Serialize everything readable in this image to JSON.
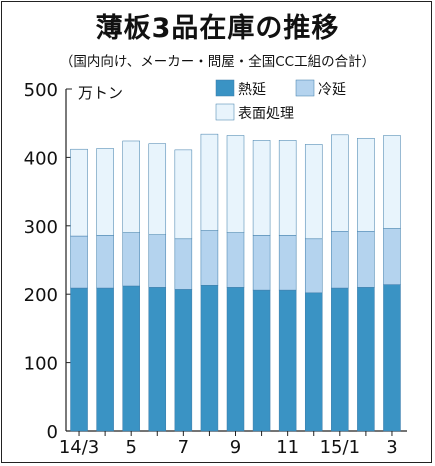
{
  "chart_data": {
    "type": "bar",
    "stacked": true,
    "title": "薄板3品在庫の推移",
    "subtitle": "（国内向け、メーカー・問屋・全国CC工組の合計）",
    "unit": "万トン",
    "ylim": [
      0,
      500
    ],
    "yticks": [
      0,
      100,
      200,
      300,
      400,
      500
    ],
    "grid": false,
    "legend_position": "top-right",
    "categories": [
      "14/3",
      "4",
      "5",
      "6",
      "7",
      "8",
      "9",
      "10",
      "11",
      "12",
      "15/1",
      "2",
      "3"
    ],
    "x_tick_labels": [
      "14/3",
      "",
      "5",
      "",
      "7",
      "",
      "9",
      "",
      "11",
      "",
      "15/1",
      "",
      "3"
    ],
    "series": [
      {
        "name": "熱延",
        "color": "#3a93c4",
        "values": [
          209,
          209,
          212,
          210,
          207,
          213,
          210,
          206,
          206,
          202,
          209,
          210,
          214
        ]
      },
      {
        "name": "冷延",
        "color": "#b4d3ee",
        "values": [
          76,
          77,
          78,
          77,
          74,
          80,
          80,
          80,
          80,
          79,
          83,
          82,
          82
        ]
      },
      {
        "name": "表面処理",
        "color": "#e8f4fc",
        "values": [
          127,
          127,
          134,
          133,
          130,
          141,
          142,
          139,
          139,
          138,
          141,
          136,
          136
        ]
      }
    ]
  }
}
